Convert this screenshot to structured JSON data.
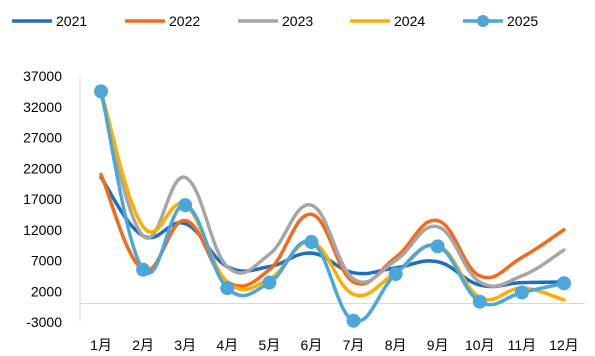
{
  "chart_data": {
    "type": "line",
    "title": "",
    "xlabel": "",
    "ylabel": "",
    "categories": [
      "1月",
      "2月",
      "3月",
      "4月",
      "5月",
      "6月",
      "7月",
      "8月",
      "9月",
      "10月",
      "11月",
      "12月"
    ],
    "yticks": [
      "37000",
      "32000",
      "27000",
      "22000",
      "17000",
      "12000",
      "7000",
      "2000",
      "-3000"
    ],
    "ylim": [
      -3000,
      37000
    ],
    "grid": false,
    "smooth": true,
    "legend_position": "top",
    "series": [
      {
        "name": "2021",
        "color": "#1f6fc1",
        "markers": false,
        "values": [
          20500,
          11000,
          13000,
          6000,
          6000,
          8200,
          5000,
          5800,
          6800,
          3000,
          3400,
          3500
        ]
      },
      {
        "name": "2022",
        "color": "#f26a1b",
        "markers": false,
        "values": [
          21000,
          5500,
          13500,
          3500,
          5500,
          14500,
          3500,
          7500,
          13500,
          4500,
          7500,
          12000
        ]
      },
      {
        "name": "2023",
        "color": "#a6a6a6",
        "markers": false,
        "values": [
          34000,
          11000,
          20500,
          6000,
          8000,
          16000,
          4000,
          7000,
          12500,
          3500,
          4500,
          8700
        ]
      },
      {
        "name": "2024",
        "color": "#ffae00",
        "markers": false,
        "values": [
          34500,
          12500,
          16000,
          3500,
          4000,
          10000,
          1500,
          5000,
          9500,
          1000,
          2500,
          600
        ]
      },
      {
        "name": "2025",
        "color": "#4ba6dc",
        "markers": true,
        "values": [
          34500,
          5500,
          16000,
          2500,
          3400,
          10000,
          -2800,
          4800,
          9300,
          300,
          1800,
          3300
        ]
      }
    ]
  }
}
